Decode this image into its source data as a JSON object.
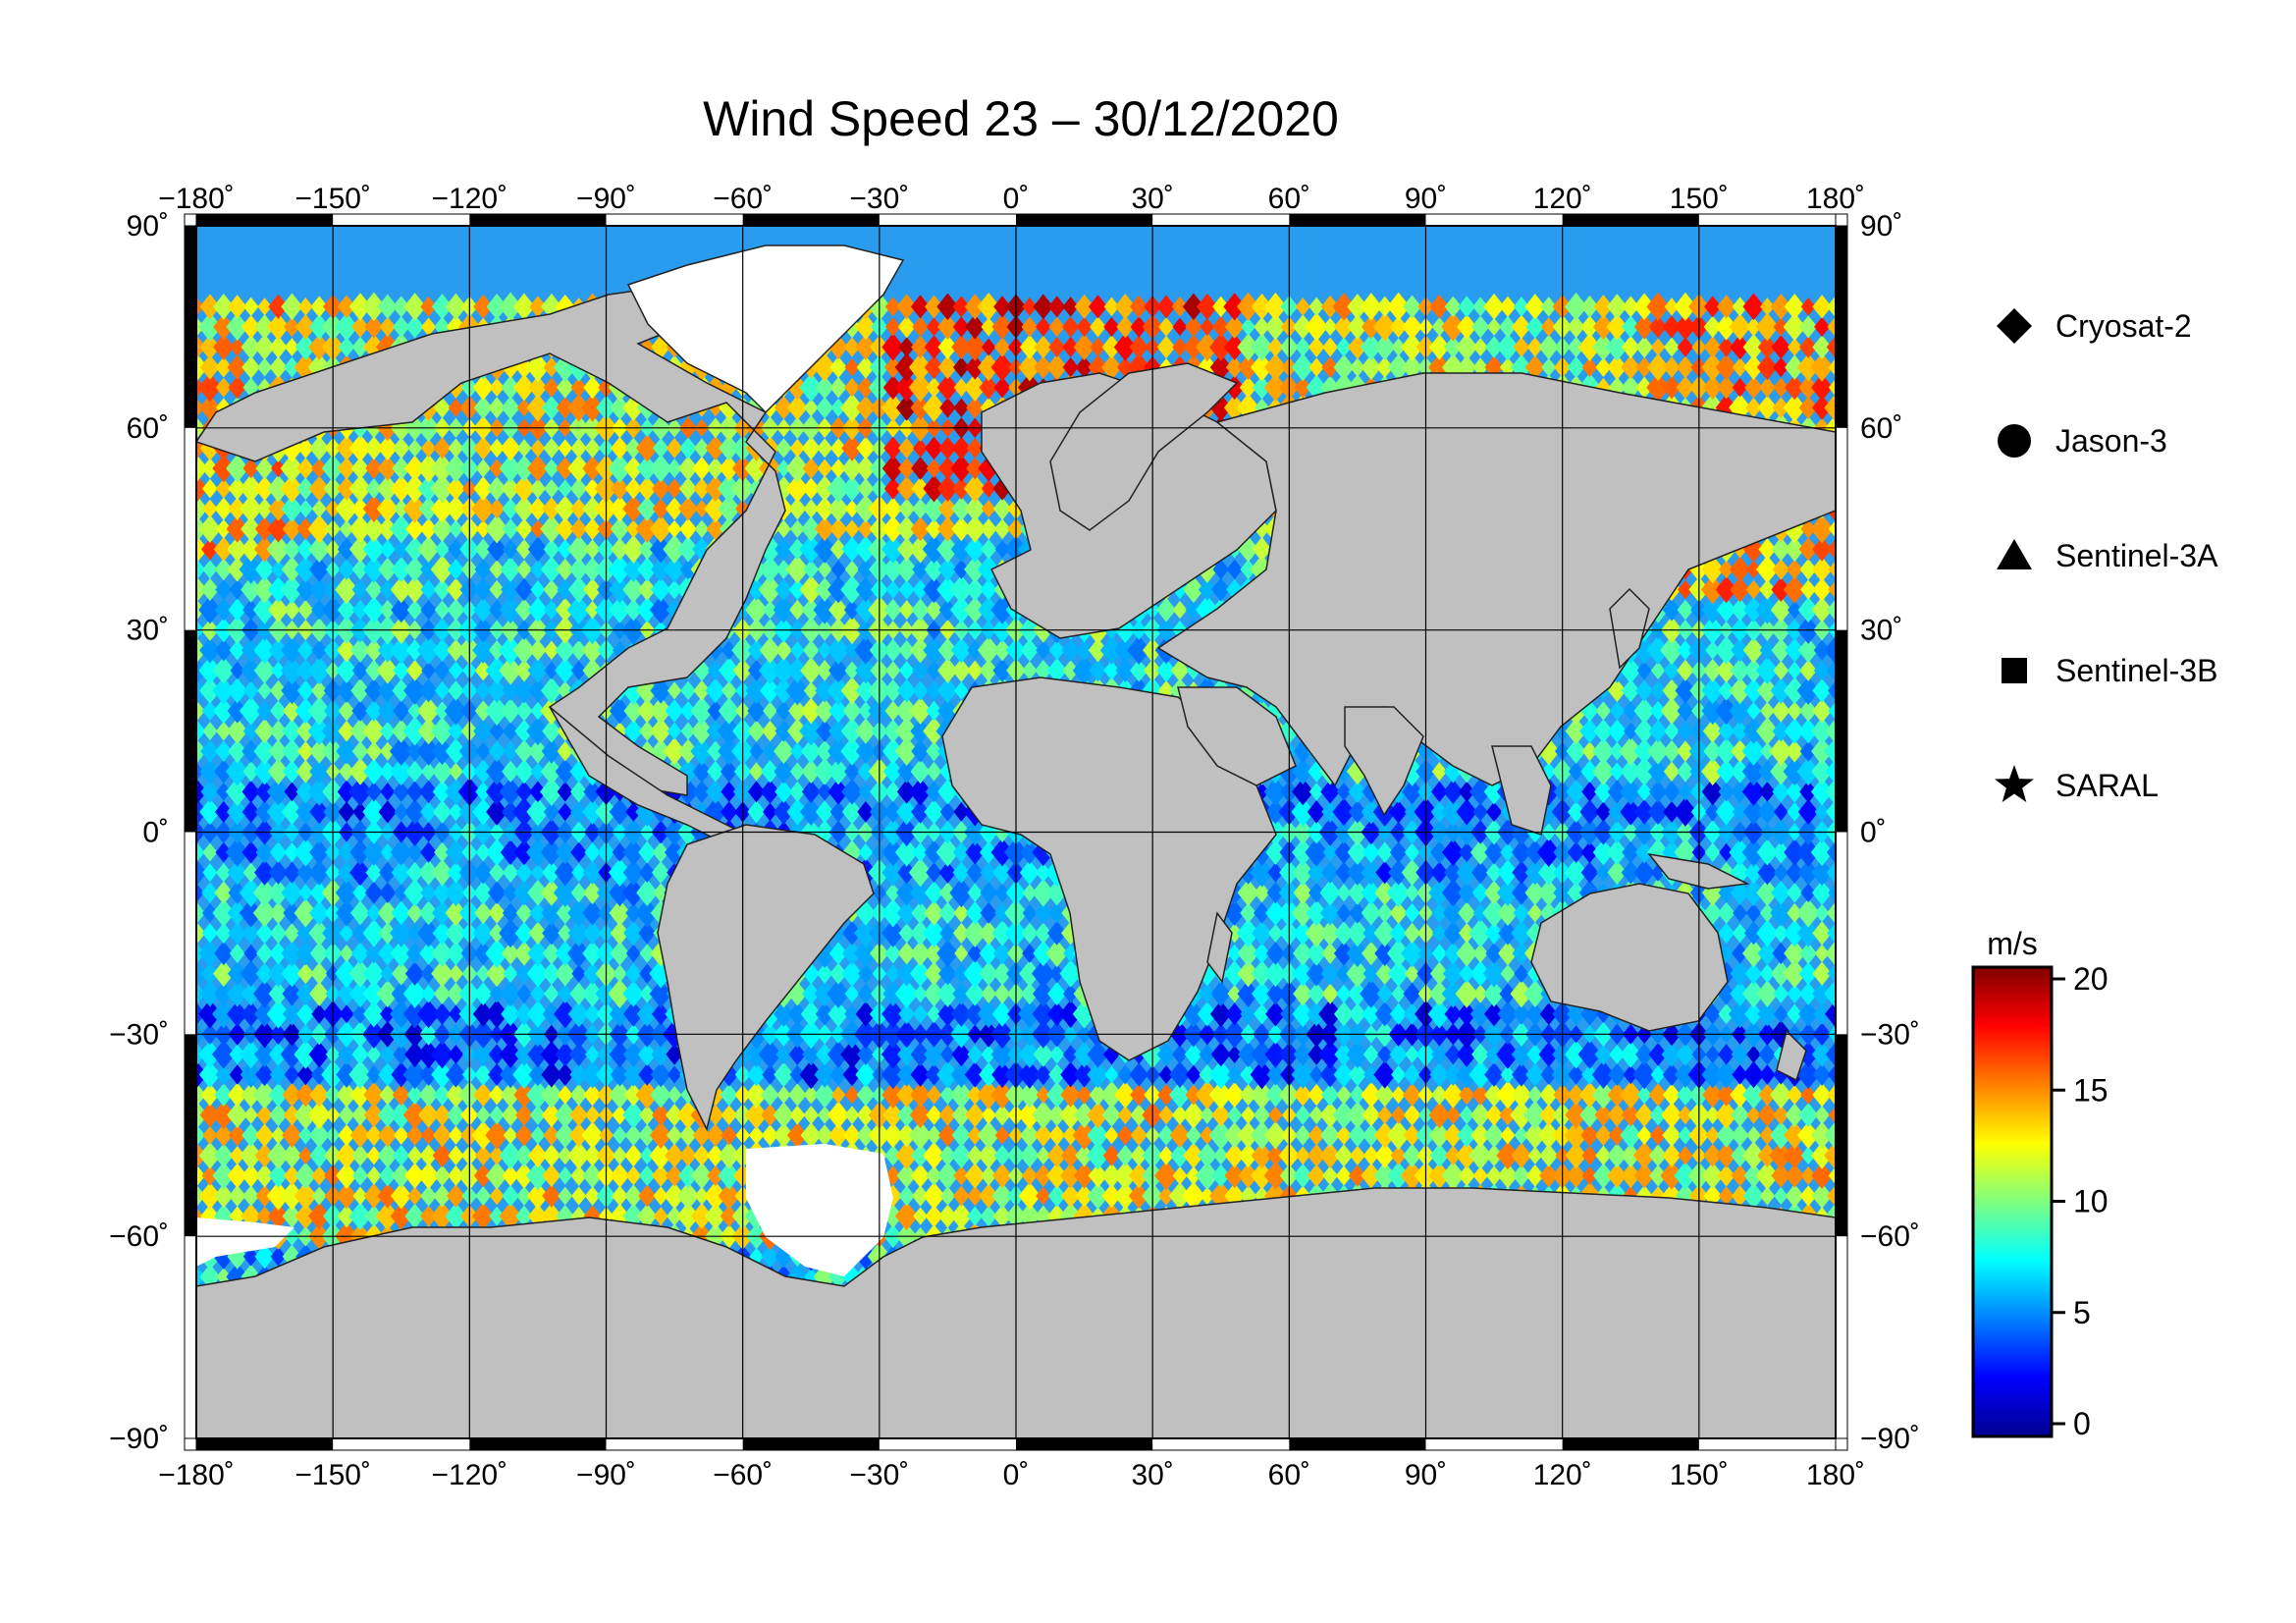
{
  "title": "Wind Speed 23 – 30/12/2020",
  "map": {
    "projection": "equirectangular",
    "lon_range": [
      -180,
      180
    ],
    "lat_range": [
      -90,
      90
    ],
    "lon_ticks": [
      "−180˚",
      "−150˚",
      "−120˚",
      "−90˚",
      "−60˚",
      "−30˚",
      "0˚",
      "30˚",
      "60˚",
      "90˚",
      "120˚",
      "150˚",
      "180˚"
    ],
    "lat_ticks_left": [
      "90˚",
      "60˚",
      "30˚",
      "0˚",
      "−30˚",
      "−60˚",
      "−90˚"
    ],
    "lat_ticks_right": [
      "90˚",
      "60˚",
      "30˚",
      "0˚",
      "−30˚",
      "−60˚",
      "−90˚"
    ],
    "land_color": "#c0c0c0",
    "ice_color": "#ffffff",
    "grid": true
  },
  "legend": {
    "placement": "right",
    "items": [
      {
        "name": "Cryosat-2",
        "symbol": "diamond"
      },
      {
        "name": "Jason-3",
        "symbol": "circle"
      },
      {
        "name": "Sentinel-3A",
        "symbol": "triangle"
      },
      {
        "name": "Sentinel-3B",
        "symbol": "square"
      },
      {
        "name": "SARAL",
        "symbol": "star"
      }
    ]
  },
  "colorbar": {
    "unit": "m/s",
    "min": 0,
    "max": 20,
    "ticks": [
      "0",
      "5",
      "10",
      "15",
      "20"
    ],
    "colormap": "jet"
  }
}
